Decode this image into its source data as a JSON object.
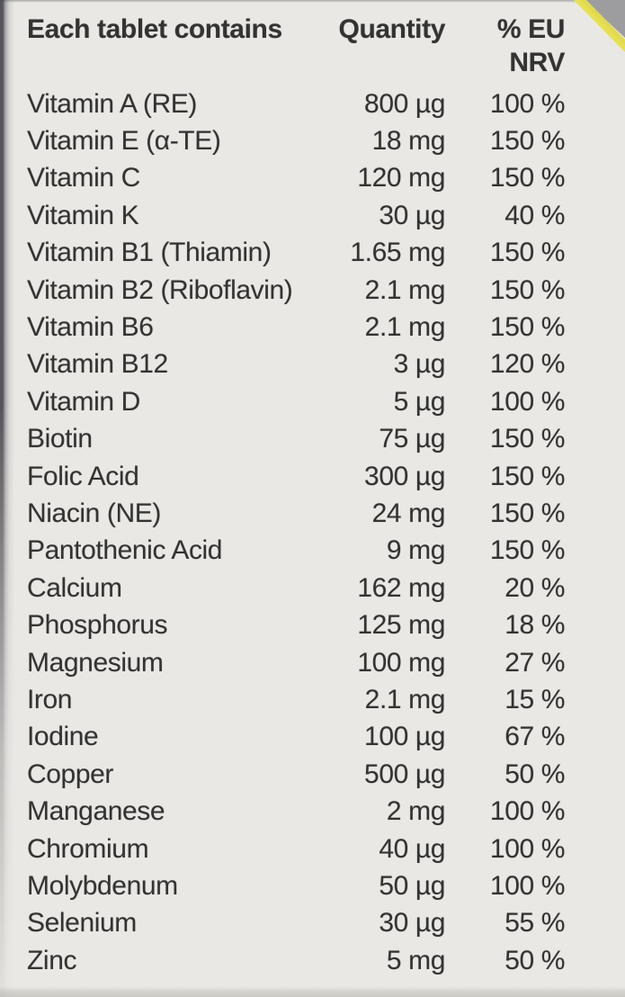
{
  "table": {
    "headers": {
      "ingredient": "Each tablet contains",
      "quantity": "Quantity",
      "nrv_line1": "% EU",
      "nrv_line2": "NRV"
    },
    "rows": [
      {
        "name": "Vitamin A (RE)",
        "quantity": "800 µg",
        "nrv": "100 %"
      },
      {
        "name": "Vitamin E (α-TE)",
        "quantity": "18 mg",
        "nrv": "150 %"
      },
      {
        "name": "Vitamin C",
        "quantity": "120 mg",
        "nrv": "150 %"
      },
      {
        "name": "Vitamin K",
        "quantity": "30 µg",
        "nrv": "40 %"
      },
      {
        "name": "Vitamin B1 (Thiamin)",
        "quantity": "1.65 mg",
        "nrv": "150 %"
      },
      {
        "name": "Vitamin B2 (Riboflavin)",
        "quantity": "2.1 mg",
        "nrv": "150 %"
      },
      {
        "name": "Vitamin B6",
        "quantity": "2.1 mg",
        "nrv": "150 %"
      },
      {
        "name": "Vitamin B12",
        "quantity": "3 µg",
        "nrv": "120 %"
      },
      {
        "name": "Vitamin D",
        "quantity": "5 µg",
        "nrv": "100 %"
      },
      {
        "name": "Biotin",
        "quantity": "75 µg",
        "nrv": "150 %"
      },
      {
        "name": "Folic Acid",
        "quantity": "300 µg",
        "nrv": "150 %"
      },
      {
        "name": "Niacin (NE)",
        "quantity": "24 mg",
        "nrv": "150 %"
      },
      {
        "name": "Pantothenic Acid",
        "quantity": "9 mg",
        "nrv": "150 %"
      },
      {
        "name": "Calcium",
        "quantity": "162 mg",
        "nrv": "20 %"
      },
      {
        "name": "Phosphorus",
        "quantity": "125 mg",
        "nrv": "18 %"
      },
      {
        "name": "Magnesium",
        "quantity": "100 mg",
        "nrv": "27 %"
      },
      {
        "name": "Iron",
        "quantity": "2.1 mg",
        "nrv": "15 %"
      },
      {
        "name": "Iodine",
        "quantity": "100 µg",
        "nrv": "67 %"
      },
      {
        "name": "Copper",
        "quantity": "500 µg",
        "nrv": "50 %"
      },
      {
        "name": "Manganese",
        "quantity": "2 mg",
        "nrv": "100 %"
      },
      {
        "name": "Chromium",
        "quantity": "40 µg",
        "nrv": "100 %"
      },
      {
        "name": "Molybdenum",
        "quantity": "50 µg",
        "nrv": "100 %"
      },
      {
        "name": "Selenium",
        "quantity": "30 µg",
        "nrv": "55 %"
      },
      {
        "name": "Zinc",
        "quantity": "5 mg",
        "nrv": "50 %"
      }
    ]
  },
  "colors": {
    "background": "#eae8e4",
    "text": "#333333",
    "accent_yellow": "#e6e153",
    "corner_gray": "#9d9da0",
    "edge_dark": "#45454d"
  }
}
